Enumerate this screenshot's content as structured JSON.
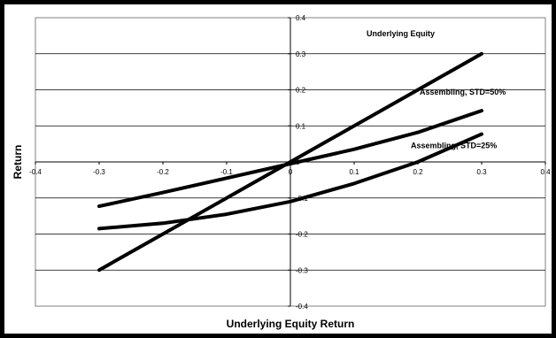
{
  "chart_data": {
    "type": "line",
    "xlabel": "Underlying Equity Return",
    "ylabel": "Return",
    "xlim": [
      -0.4,
      0.4
    ],
    "ylim": [
      -0.4,
      0.4
    ],
    "x_ticks": [
      "-0.4",
      "-0.3",
      "-0.2",
      "-0.1",
      "0",
      "0.1",
      "0.2",
      "0.3",
      "0.4"
    ],
    "y_ticks": [
      "0.4",
      "0.3",
      "0.2",
      "0.1",
      "0",
      "-0.1",
      "-0.2",
      "-0.3",
      "-0.4"
    ],
    "grid": "horizontal",
    "legend": "none",
    "line_color": "#000000",
    "series": [
      {
        "name": "Underlying Equity",
        "x": [
          -0.3,
          -0.2,
          -0.1,
          0.0,
          0.1,
          0.2,
          0.3
        ],
        "y": [
          -0.3,
          -0.2,
          -0.1,
          0.0,
          0.1,
          0.2,
          0.3
        ]
      },
      {
        "name": "Assembling, STD=50%",
        "x": [
          -0.3,
          -0.2,
          -0.1,
          0.0,
          0.1,
          0.2,
          0.3
        ],
        "y": [
          -0.123,
          -0.085,
          -0.045,
          -0.005,
          0.035,
          0.082,
          0.142
        ]
      },
      {
        "name": "Assembling, STD=25%",
        "x": [
          -0.3,
          -0.2,
          -0.1,
          0.0,
          0.1,
          0.2,
          0.3
        ],
        "y": [
          -0.185,
          -0.17,
          -0.145,
          -0.11,
          -0.06,
          0.0,
          0.077
        ]
      }
    ]
  }
}
